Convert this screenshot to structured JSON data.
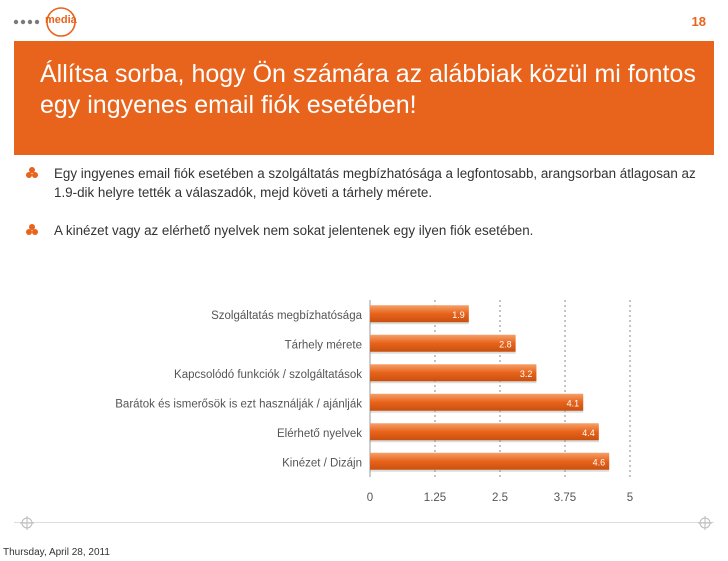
{
  "slide": {
    "page_number": "18",
    "logo_text": "media",
    "title": "Állítsa sorba, hogy Ön számára az alábbiak közül mi fontos egy ingyenes email fiók esetében!",
    "bullets": [
      "Egy ingyenes email fiók esetében a szolgáltatás megbízhatósága a legfontosabb, arangsorban átlagosan az 1.9-dik helyre tették a válaszadók, mejd követi a tárhely mérete.",
      "A kinézet vagy az elérhető nyelvek nem sokat jelentenek egy ilyen fiók esetében."
    ],
    "accent_color": "#e8631b",
    "footer_date": "Thursday, April 28, 2011"
  },
  "chart_data": {
    "type": "bar",
    "orientation": "horizontal",
    "categories": [
      "Szolgáltatás megbízhatósága",
      "Tárhely mérete",
      "Kapcsolódó funkciók / szolgáltatások",
      "Barátok és ismerősök is ezt használják / ajánlják",
      "Elérhető nyelvek",
      "Kinézet / Dizájn"
    ],
    "values": [
      1.9,
      2.8,
      3.2,
      4.1,
      4.4,
      4.6
    ],
    "data_labels": [
      "1.9",
      "2.8",
      "3.2",
      "4.1",
      "4.4",
      "4.6"
    ],
    "x_ticks": [
      "0",
      "1.25",
      "2.5",
      "3.75",
      "5"
    ],
    "x_tick_values": [
      0,
      1.25,
      2.5,
      3.75,
      5
    ],
    "xlim": [
      0,
      5
    ],
    "grid": true,
    "bar_color": "#e8631b"
  }
}
